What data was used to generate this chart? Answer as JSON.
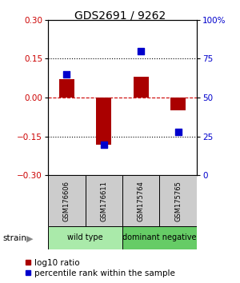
{
  "title": "GDS2691 / 9262",
  "samples": [
    "GSM176606",
    "GSM176611",
    "GSM175764",
    "GSM175765"
  ],
  "log10_ratio": [
    0.07,
    -0.18,
    0.08,
    -0.05
  ],
  "percentile_rank": [
    65,
    20,
    80,
    28
  ],
  "groups": [
    {
      "label": "wild type",
      "samples": [
        0,
        1
      ],
      "color": "#aaeaaa"
    },
    {
      "label": "dominant negative",
      "samples": [
        2,
        3
      ],
      "color": "#66cc66"
    }
  ],
  "group_label": "strain",
  "ylim_left": [
    -0.3,
    0.3
  ],
  "ylim_right": [
    0,
    100
  ],
  "yticks_left": [
    -0.3,
    -0.15,
    0,
    0.15,
    0.3
  ],
  "yticks_right": [
    0,
    25,
    50,
    75,
    100
  ],
  "ytick_labels_right": [
    "0",
    "25",
    "50",
    "75",
    "100%"
  ],
  "hlines": [
    0.15,
    -0.15
  ],
  "bar_color": "#aa0000",
  "dot_color": "#0000cc",
  "bar_width": 0.4,
  "dot_size": 30,
  "background_color": "#ffffff",
  "plot_bg_color": "#ffffff",
  "label_color_red": "#cc0000",
  "label_color_blue": "#0000cc",
  "zero_line_color": "#cc0000",
  "sample_box_color": "#cccccc",
  "title_fontsize": 10,
  "tick_fontsize": 7.5,
  "legend_fontsize": 7.5
}
